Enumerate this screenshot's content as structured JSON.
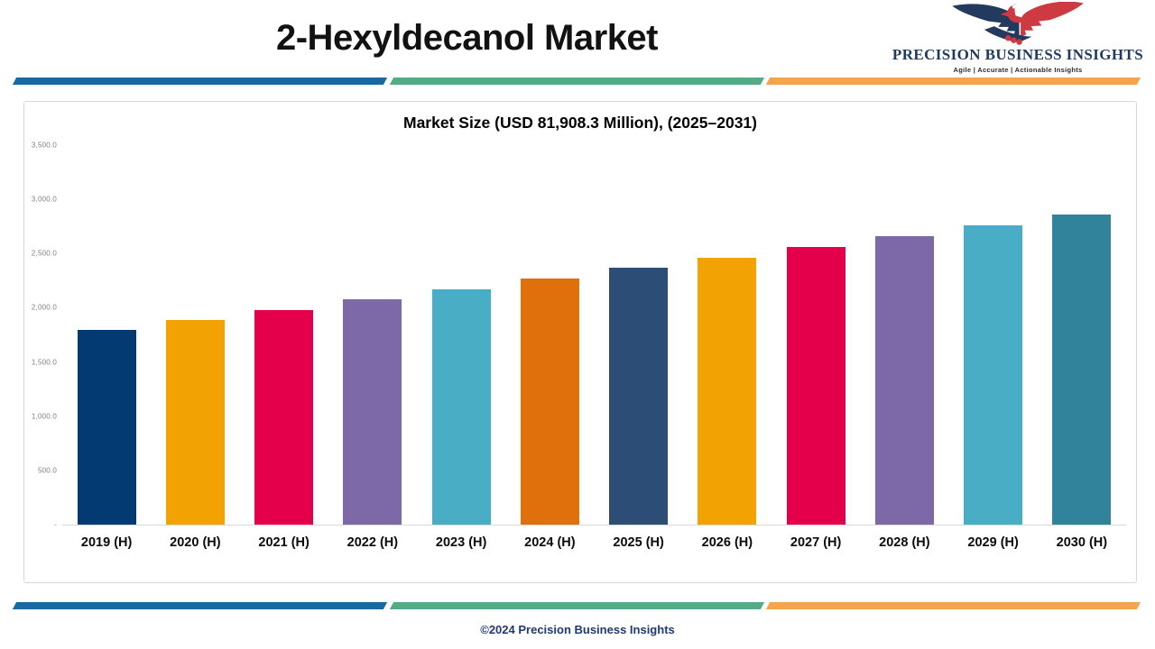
{
  "header": {
    "title": "2-Hexyldecanol Market"
  },
  "logo": {
    "name": "PRECISION BUSINESS INSIGHTS",
    "tagline": "Agile | Accurate | Actionable Insights",
    "navy": "#24395E",
    "red": "#CE3A41"
  },
  "stripe": {
    "colors": [
      "#17699F",
      "#54AB86",
      "#F4A44C"
    ]
  },
  "footer": {
    "text": "©2024 Precision Business Insights"
  },
  "chart_data": {
    "type": "bar",
    "title": "Market Size (USD 81,908.3 Million), (2025–2031)",
    "categories": [
      "2019 (H)",
      "2020 (H)",
      "2021 (H)",
      "2022 (H)",
      "2023 (H)",
      "2024 (H)",
      "2025 (H)",
      "2026 (H)",
      "2027 (H)",
      "2028 (H)",
      "2029 (H)",
      "2030 (H)"
    ],
    "values": [
      1800,
      1890,
      1980,
      2080,
      2170,
      2270,
      2370,
      2460,
      2560,
      2660,
      2760,
      2860
    ],
    "bar_colors": [
      "#043A72",
      "#F2A202",
      "#E4004B",
      "#7D68A8",
      "#4AADC6",
      "#E0700C",
      "#2C4D75",
      "#F2A202",
      "#E4004B",
      "#7D68A8",
      "#4AADC6",
      "#31839B"
    ],
    "xlabel": "",
    "ylabel": "",
    "ylim": [
      0,
      3500
    ],
    "yticks": [
      {
        "value": 3500,
        "label": "3,500.0"
      },
      {
        "value": 3000,
        "label": "3,000.0"
      },
      {
        "value": 2500,
        "label": "2,500.0"
      },
      {
        "value": 2000,
        "label": "2,000.0"
      },
      {
        "value": 1500,
        "label": "1,500.0"
      },
      {
        "value": 1000,
        "label": "1,000.0"
      },
      {
        "value": 500,
        "label": "500.0"
      },
      {
        "value": 0,
        "label": "-"
      }
    ],
    "grid": false,
    "legend": "none"
  }
}
